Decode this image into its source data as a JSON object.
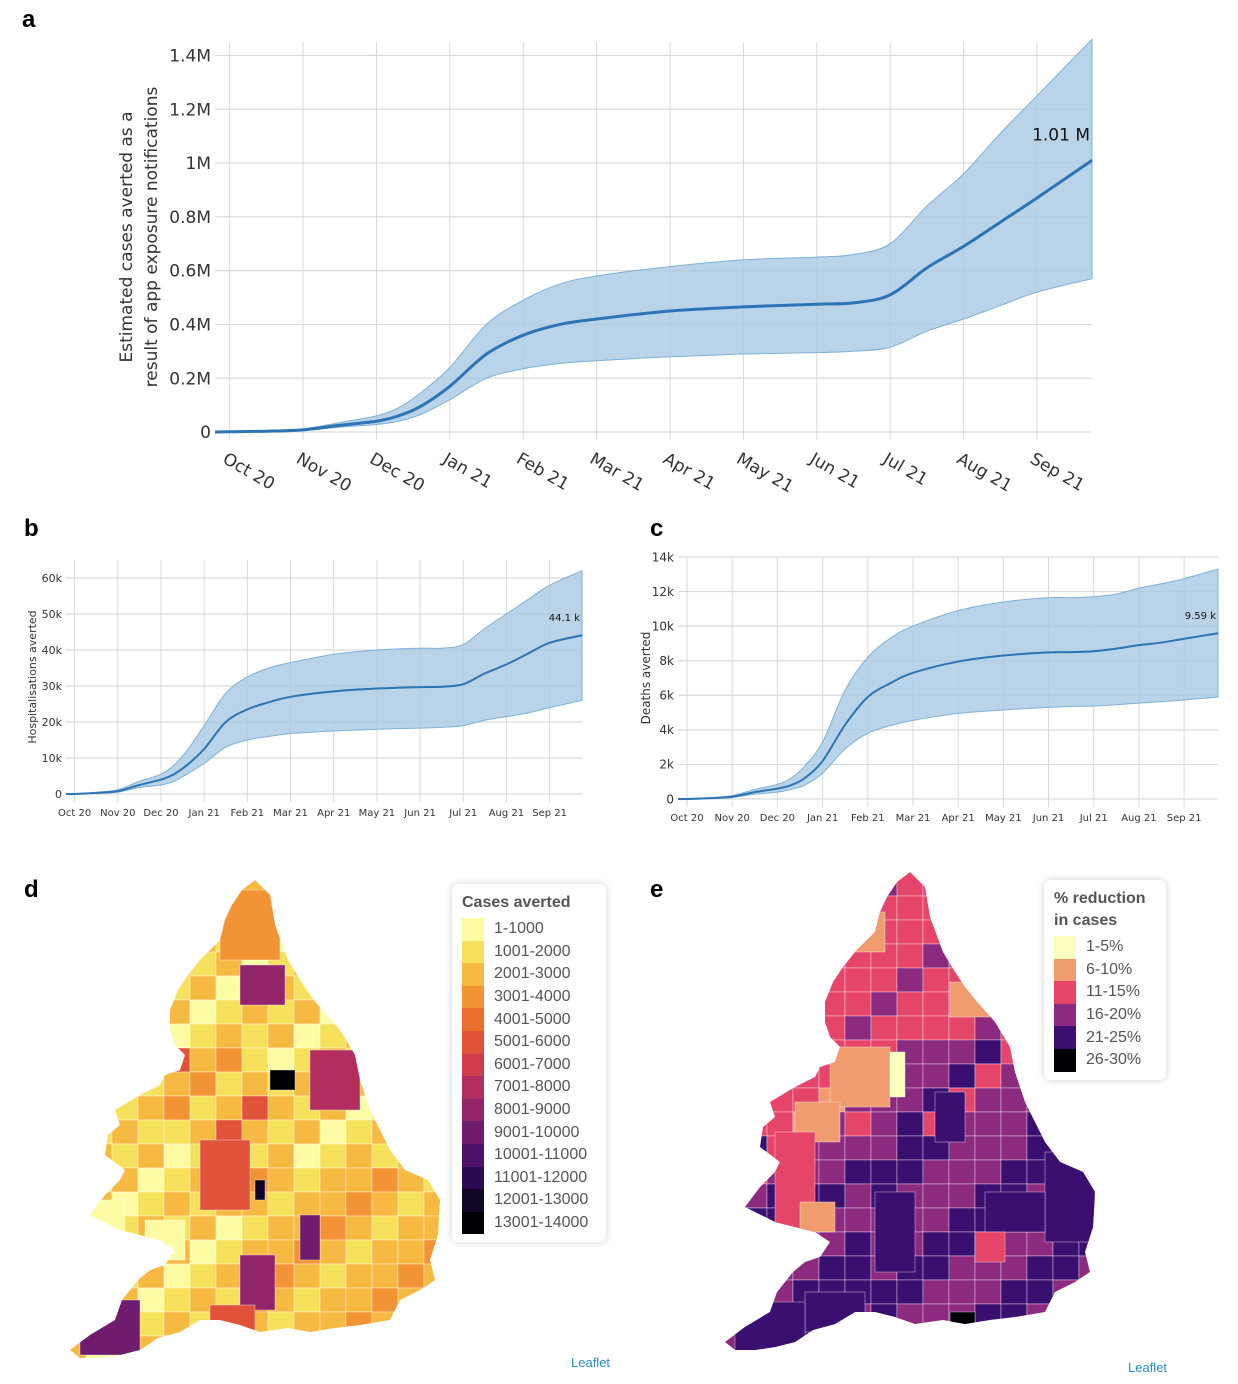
{
  "panels": {
    "a": "a",
    "b": "b",
    "c": "c",
    "d": "d",
    "e": "e"
  },
  "chart_data": [
    {
      "id": "a",
      "type": "line",
      "title": "",
      "xlabel": "",
      "ylabel": [
        "Estimated cases averted as a",
        "result of app exposure notifications"
      ],
      "x_ticks": [
        "Oct 20",
        "Nov 20",
        "Dec 20",
        "Jan 21",
        "Feb 21",
        "Mar 21",
        "Apr 21",
        "May 21",
        "Jun 21",
        "Jul 21",
        "Aug 21",
        "Sep 21"
      ],
      "y_ticks": [
        "0",
        "0.2M",
        "0.4M",
        "0.6M",
        "0.8M",
        "1M",
        "1.2M",
        "1.4M"
      ],
      "y_tick_values": [
        0,
        200000,
        400000,
        600000,
        800000,
        1000000,
        1200000,
        1400000
      ],
      "ylim": [
        0,
        1450000
      ],
      "xlim_months": [
        -0.2,
        11.75
      ],
      "rotated_x_labels": true,
      "grid": true,
      "annotation": "1.01 M",
      "series": [
        {
          "name": "median",
          "x": [
            -0.2,
            0,
            0.5,
            1,
            1.5,
            2,
            2.3,
            2.6,
            3,
            3.5,
            4,
            4.5,
            5,
            6,
            7,
            8,
            8.5,
            9,
            9.5,
            10,
            10.5,
            11,
            11.75
          ],
          "values": [
            0,
            1000,
            3000,
            8000,
            25000,
            40000,
            60000,
            95000,
            170000,
            290000,
            360000,
            400000,
            420000,
            450000,
            465000,
            475000,
            480000,
            510000,
            610000,
            690000,
            780000,
            870000,
            1010000
          ]
        },
        {
          "name": "upper",
          "x": [
            -0.2,
            0,
            0.5,
            1,
            1.5,
            2,
            2.3,
            2.6,
            3,
            3.5,
            4,
            4.5,
            5,
            6,
            7,
            8,
            8.5,
            9,
            9.5,
            10,
            10.5,
            11,
            11.75
          ],
          "values": [
            0,
            1500,
            5000,
            12000,
            35000,
            60000,
            90000,
            145000,
            240000,
            400000,
            490000,
            550000,
            580000,
            615000,
            640000,
            650000,
            660000,
            700000,
            840000,
            960000,
            1110000,
            1250000,
            1460000
          ]
        },
        {
          "name": "lower",
          "x": [
            -0.2,
            0,
            0.5,
            1,
            1.5,
            2,
            2.3,
            2.6,
            3,
            3.5,
            4,
            4.5,
            5,
            6,
            7,
            8,
            8.5,
            9,
            9.5,
            10,
            10.5,
            11,
            11.75
          ],
          "values": [
            0,
            500,
            2000,
            5000,
            18000,
            28000,
            40000,
            65000,
            120000,
            200000,
            235000,
            255000,
            265000,
            280000,
            290000,
            295000,
            300000,
            315000,
            375000,
            420000,
            470000,
            520000,
            570000
          ]
        }
      ]
    },
    {
      "id": "b",
      "type": "line",
      "title": "",
      "xlabel": "",
      "ylabel": [
        "Hospitalisations averted"
      ],
      "x_ticks": [
        "Oct 20",
        "Nov 20",
        "Dec 20",
        "Jan 21",
        "Feb 21",
        "Mar 21",
        "Apr 21",
        "May 21",
        "Jun 21",
        "Jul 21",
        "Aug 21",
        "Sep 21"
      ],
      "y_ticks": [
        "0",
        "10k",
        "20k",
        "30k",
        "40k",
        "50k",
        "60k"
      ],
      "y_tick_values": [
        0,
        10000,
        20000,
        30000,
        40000,
        50000,
        60000
      ],
      "ylim": [
        0,
        65000
      ],
      "xlim_months": [
        -0.2,
        11.75
      ],
      "rotated_x_labels": false,
      "grid": true,
      "annotation": "44.1 k",
      "series": [
        {
          "name": "median",
          "x": [
            -0.2,
            0,
            0.5,
            1,
            1.5,
            2,
            2.3,
            2.6,
            3,
            3.5,
            4,
            4.5,
            5,
            6,
            7,
            8,
            8.5,
            9,
            9.5,
            10,
            10.5,
            11,
            11.75
          ],
          "values": [
            0,
            0,
            300,
            800,
            2500,
            4000,
            5500,
            8000,
            12500,
            20000,
            23500,
            25500,
            27000,
            28500,
            29300,
            29700,
            29800,
            30500,
            33500,
            36000,
            39000,
            42000,
            44100
          ]
        },
        {
          "name": "upper",
          "x": [
            -0.2,
            0,
            0.5,
            1,
            1.5,
            2,
            2.3,
            2.6,
            3,
            3.5,
            4,
            4.5,
            5,
            6,
            7,
            8,
            8.5,
            9,
            9.5,
            10,
            10.5,
            11,
            11.75
          ],
          "values": [
            0,
            0,
            500,
            1200,
            3500,
            5500,
            8000,
            12000,
            19000,
            28000,
            32500,
            35000,
            36500,
            38800,
            40000,
            40500,
            40500,
            41500,
            46000,
            50000,
            54000,
            58000,
            62000
          ]
        },
        {
          "name": "lower",
          "x": [
            -0.2,
            0,
            0.5,
            1,
            1.5,
            2,
            2.3,
            2.6,
            3,
            3.5,
            4,
            4.5,
            5,
            6,
            7,
            8,
            8.5,
            9,
            9.5,
            10,
            10.5,
            11,
            11.75
          ],
          "values": [
            0,
            0,
            200,
            500,
            1800,
            2500,
            3500,
            5500,
            8500,
            13000,
            15000,
            16000,
            16800,
            17500,
            18000,
            18300,
            18500,
            19000,
            20500,
            21500,
            22500,
            24000,
            26000
          ]
        }
      ]
    },
    {
      "id": "c",
      "type": "line",
      "title": "",
      "xlabel": "",
      "ylabel": [
        "Deaths averted"
      ],
      "x_ticks": [
        "Oct 20",
        "Nov 20",
        "Dec 20",
        "Jan 21",
        "Feb 21",
        "Mar 21",
        "Apr 21",
        "May 21",
        "Jun 21",
        "Jul 21",
        "Aug 21",
        "Sep 21"
      ],
      "y_ticks": [
        "0",
        "2k",
        "4k",
        "6k",
        "8k",
        "10k",
        "12k",
        "14k"
      ],
      "y_tick_values": [
        0,
        2000,
        4000,
        6000,
        8000,
        10000,
        12000,
        14000
      ],
      "ylim": [
        0,
        14000
      ],
      "xlim_months": [
        -0.2,
        11.75
      ],
      "rotated_x_labels": false,
      "grid": true,
      "annotation": "9.59 k",
      "series": [
        {
          "name": "median",
          "x": [
            -0.2,
            0,
            0.5,
            1,
            1.5,
            2,
            2.3,
            2.6,
            3,
            3.5,
            4,
            4.5,
            5,
            6,
            7,
            8,
            8.5,
            9,
            9.5,
            10,
            10.5,
            11,
            11.75
          ],
          "values": [
            0,
            0,
            50,
            130,
            400,
            600,
            800,
            1200,
            2200,
            4300,
            5900,
            6700,
            7300,
            7950,
            8300,
            8480,
            8500,
            8550,
            8700,
            8900,
            9050,
            9270,
            9590
          ]
        },
        {
          "name": "upper",
          "x": [
            -0.2,
            0,
            0.5,
            1,
            1.5,
            2,
            2.3,
            2.6,
            3,
            3.5,
            4,
            4.5,
            5,
            6,
            7,
            8,
            8.5,
            9,
            9.5,
            10,
            10.5,
            11,
            11.75
          ],
          "values": [
            0,
            0,
            70,
            200,
            550,
            850,
            1200,
            1900,
            3300,
            6300,
            8200,
            9300,
            10000,
            10900,
            11400,
            11650,
            11650,
            11700,
            11850,
            12200,
            12450,
            12750,
            13300
          ]
        },
        {
          "name": "lower",
          "x": [
            -0.2,
            0,
            0.5,
            1,
            1.5,
            2,
            2.3,
            2.6,
            3,
            3.5,
            4,
            4.5,
            5,
            6,
            7,
            8,
            8.5,
            9,
            9.5,
            10,
            10.5,
            11,
            11.75
          ],
          "values": [
            0,
            0,
            30,
            90,
            280,
            400,
            550,
            800,
            1500,
            2900,
            3800,
            4250,
            4550,
            4950,
            5150,
            5300,
            5350,
            5380,
            5450,
            5550,
            5630,
            5730,
            5900
          ]
        }
      ]
    }
  ],
  "map_d": {
    "legend_title": "Cases averted",
    "legend": [
      {
        "label": "1-1000",
        "color": "#fcfba4"
      },
      {
        "label": "1001-2000",
        "color": "#f6e05c"
      },
      {
        "label": "2001-3000",
        "color": "#f6b942"
      },
      {
        "label": "3001-4000",
        "color": "#f29335"
      },
      {
        "label": "4001-5000",
        "color": "#ea6f2a"
      },
      {
        "label": "5001-6000",
        "color": "#e0523a"
      },
      {
        "label": "6001-7000",
        "color": "#cf3d4d"
      },
      {
        "label": "7001-8000",
        "color": "#b32e5e"
      },
      {
        "label": "8001-9000",
        "color": "#92256a"
      },
      {
        "label": "9001-10000",
        "color": "#6f1c6e"
      },
      {
        "label": "10001-11000",
        "color": "#4c1168"
      },
      {
        "label": "11001-12000",
        "color": "#2b0a52"
      },
      {
        "label": "12001-13000",
        "color": "#110626"
      },
      {
        "label": "13001-14000",
        "color": "#000004"
      }
    ],
    "attribution": "Leaflet"
  },
  "map_e": {
    "legend_title": [
      "% reduction",
      "in cases"
    ],
    "legend": [
      {
        "label": "1-5%",
        "color": "#fcfdbf"
      },
      {
        "label": "6-10%",
        "color": "#f09c6e"
      },
      {
        "label": "11-15%",
        "color": "#e6456a"
      },
      {
        "label": "16-20%",
        "color": "#8c2a80"
      },
      {
        "label": "21-25%",
        "color": "#3b0f6f"
      },
      {
        "label": "26-30%",
        "color": "#000004"
      }
    ],
    "attribution": "Leaflet"
  },
  "colors": {
    "line": "#2c74b5",
    "band": "#a8c9e4",
    "band_edge": "#7fb0d8",
    "grid": "#d9d9d9",
    "axis_text": "#333333"
  }
}
